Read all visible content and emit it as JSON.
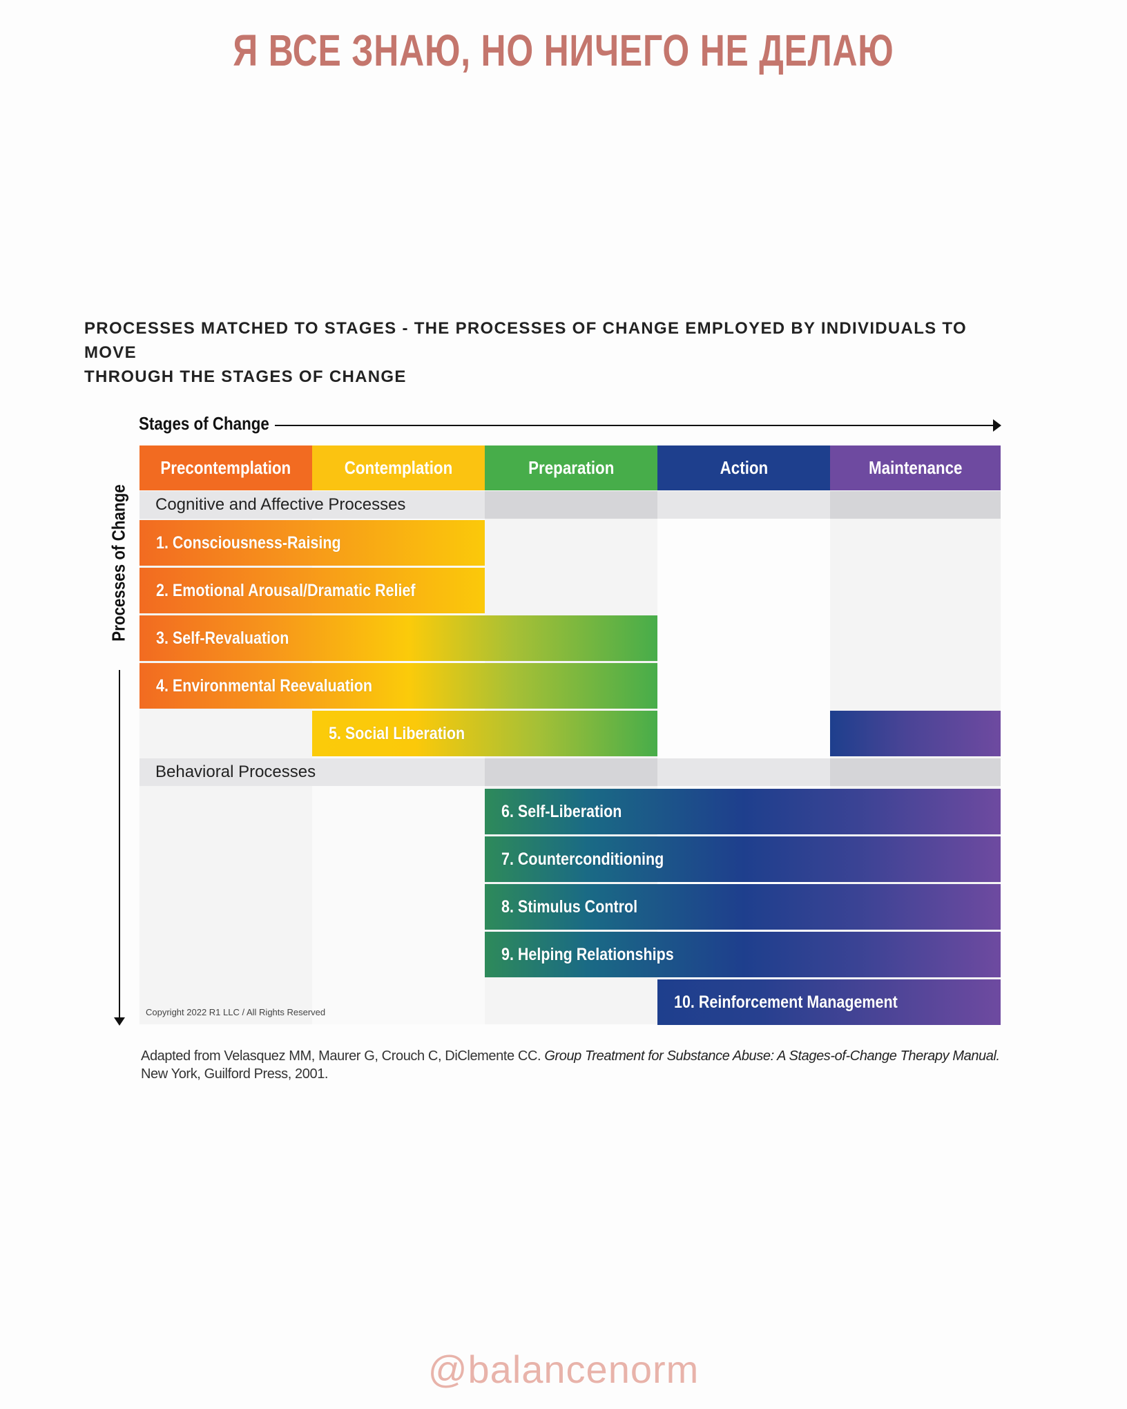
{
  "headline": "Я ВСЕ ЗНАЮ, НО НИЧЕГО НЕ ДЕЛАЮ",
  "subtitle_line1": "PROCESSES MATCHED TO STAGES - THE PROCESSES OF CHANGE EMPLOYED BY INDIVIDUALS TO MOVE",
  "subtitle_line2": "THROUGH THE STAGES OF CHANGE",
  "diagram": {
    "stages_axis_label": "Stages of Change",
    "processes_axis_label": "Processes of Change",
    "stages": [
      {
        "name": "Precontemplation",
        "color": "#f26b21"
      },
      {
        "name": "Contemplation",
        "color": "#fbc311"
      },
      {
        "name": "Preparation",
        "color": "#47ad4a"
      },
      {
        "name": "Action",
        "color": "#1e3f8d"
      },
      {
        "name": "Maintenance",
        "color": "#6e4aa0"
      }
    ],
    "sections": {
      "cognitive": "Cognitive and Affective Processes",
      "behavioral": "Behavioral Processes"
    },
    "processes": [
      {
        "label": "1. Consciousness-Raising",
        "from_stage": "Precontemplation",
        "to_stage": "Contemplation"
      },
      {
        "label": "2. Emotional Arousal/Dramatic Relief",
        "from_stage": "Precontemplation",
        "to_stage": "Contemplation"
      },
      {
        "label": "3. Self-Revaluation",
        "from_stage": "Precontemplation",
        "to_stage": "Preparation"
      },
      {
        "label": "4. Environmental Reevaluation",
        "from_stage": "Precontemplation",
        "to_stage": "Preparation"
      },
      {
        "label": "5. Social Liberation",
        "from_stage": "Contemplation",
        "to_stage": "Preparation",
        "also_stage": "Maintenance"
      },
      {
        "label": "6. Self-Liberation",
        "from_stage": "Preparation",
        "to_stage": "Maintenance"
      },
      {
        "label": "7. Counterconditioning",
        "from_stage": "Preparation",
        "to_stage": "Maintenance"
      },
      {
        "label": "8. Stimulus Control",
        "from_stage": "Preparation",
        "to_stage": "Maintenance"
      },
      {
        "label": "9. Helping Relationships",
        "from_stage": "Preparation",
        "to_stage": "Maintenance"
      },
      {
        "label": "10. Reinforcement Management",
        "from_stage": "Action",
        "to_stage": "Maintenance"
      }
    ],
    "copyright": "Copyright 2022 R1 LLC / All Rights Reserved"
  },
  "source": {
    "prefix": "Adapted from Velasquez MM, Maurer G, Crouch C, DiClemente CC. ",
    "title": "Group Treatment for Substance Abuse: A Stages-of-Change Therapy Manual.",
    "suffix": " New York, Guilford Press, 2001."
  },
  "handle": "@balancenorm"
}
